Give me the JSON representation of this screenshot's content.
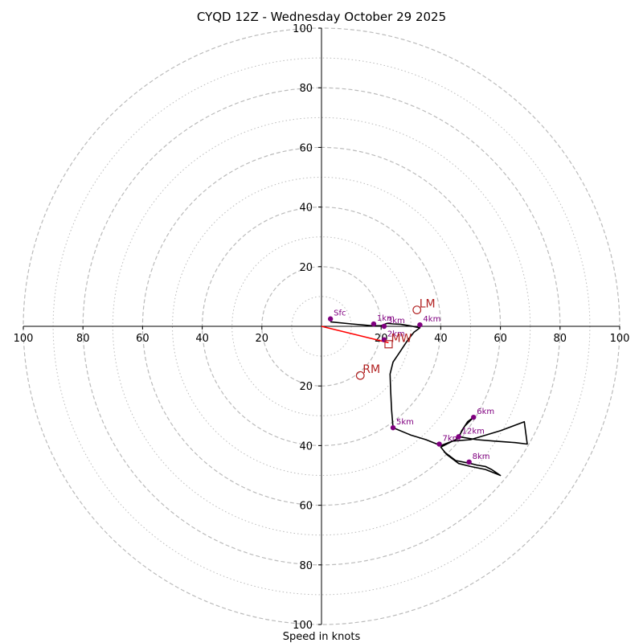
{
  "chart_data": {
    "type": "scatter",
    "title": "CYQD 12Z - Wednesday October 29 2025",
    "xlabel": "Speed in knots",
    "ylabel": "",
    "xlim": [
      -100,
      100
    ],
    "ylim": [
      -100,
      100
    ],
    "rings_major": [
      20,
      40,
      60,
      80,
      100
    ],
    "rings_minor": [
      10,
      30,
      50,
      70,
      90
    ],
    "tick_labels_x": [
      "100",
      "80",
      "60",
      "40",
      "20",
      "20",
      "40",
      "60",
      "80",
      "100"
    ],
    "tick_labels_y": [
      "100",
      "80",
      "60",
      "40",
      "20",
      "20",
      "40",
      "60",
      "80",
      "100"
    ],
    "tick_values": [
      -100,
      -80,
      -60,
      -40,
      -20,
      20,
      40,
      60,
      80,
      100
    ],
    "hodograph_line": {
      "color": "#000000",
      "points": [
        [
          3,
          1.5
        ],
        [
          10,
          0.8
        ],
        [
          17,
          0.2
        ],
        [
          20,
          0.2
        ],
        [
          22,
          1
        ],
        [
          24,
          0.8
        ],
        [
          26.5,
          0.7
        ],
        [
          29,
          0.3
        ],
        [
          33,
          -0.5
        ],
        [
          31,
          -2
        ],
        [
          29,
          -4.5
        ],
        [
          26,
          -9
        ],
        [
          24,
          -12
        ],
        [
          23,
          -16
        ],
        [
          23.2,
          -22
        ],
        [
          23.5,
          -28
        ],
        [
          24,
          -34
        ],
        [
          30,
          -36.5
        ],
        [
          35,
          -38
        ],
        [
          40,
          -40
        ],
        [
          44,
          -38.5
        ],
        [
          46,
          -37.5
        ],
        [
          47,
          -35
        ],
        [
          49,
          -32
        ],
        [
          51,
          -30.5
        ],
        [
          48,
          -33.5
        ],
        [
          46,
          -37
        ],
        [
          52,
          -38
        ],
        [
          58,
          -38.5
        ],
        [
          65,
          -39
        ],
        [
          69,
          -39.5
        ],
        [
          68,
          -32
        ],
        [
          60,
          -35
        ],
        [
          50,
          -38
        ],
        [
          44,
          -38.5
        ],
        [
          40,
          -40.5
        ],
        [
          42,
          -43
        ],
        [
          46,
          -46
        ],
        [
          50,
          -47
        ],
        [
          55,
          -48
        ],
        [
          60,
          -50
        ],
        [
          57,
          -48
        ],
        [
          55,
          -47
        ],
        [
          52,
          -46.5
        ],
        [
          50,
          -46
        ],
        [
          45,
          -45
        ],
        [
          41,
          -42
        ]
      ]
    },
    "height_markers": [
      {
        "label": "Sfc",
        "x": 3,
        "y": 2.5
      },
      {
        "label": "1km",
        "x": 17.5,
        "y": 0.8
      },
      {
        "label": "3km",
        "x": 21,
        "y": 0
      },
      {
        "label": "4km",
        "x": 33,
        "y": 0.5
      },
      {
        "label": "2km",
        "x": 21,
        "y": -4.5
      },
      {
        "label": "5km",
        "x": 24,
        "y": -34
      },
      {
        "label": "6km",
        "x": 51,
        "y": -30.5
      },
      {
        "label": "7km",
        "x": 39.5,
        "y": -39.5
      },
      {
        "label": "12km",
        "x": 46,
        "y": -37
      },
      {
        "label": "8km",
        "x": 49.5,
        "y": -45.5
      }
    ],
    "marker_color": "#800080",
    "storm_motion_color": "#b22222",
    "storm_motion": [
      {
        "label": "LM",
        "x": 32,
        "y": 5.5,
        "shape": "circle"
      },
      {
        "label": "RM",
        "x": 13,
        "y": -16.5,
        "shape": "circle"
      },
      {
        "label": "MW",
        "x": 22.5,
        "y": -6,
        "shape": "square"
      }
    ],
    "shear_vector": {
      "color": "#ff0000",
      "from": [
        0,
        0
      ],
      "to": [
        22.5,
        -5.5
      ]
    },
    "grid": true,
    "grid_color": "#bbbbbb"
  }
}
